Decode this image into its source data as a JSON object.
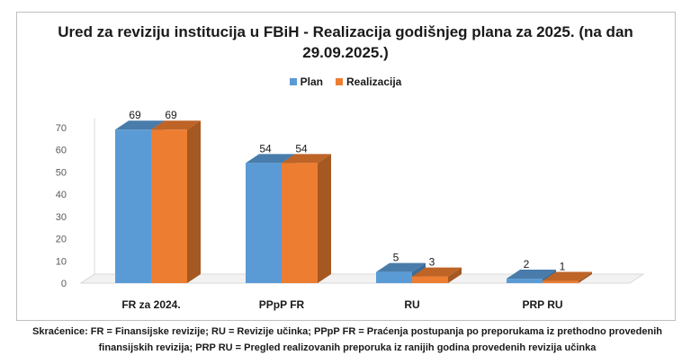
{
  "chart_data": {
    "type": "bar",
    "title": "Ured za reviziju institucija u FBiH - Realizacija godišnjeg plana za 2025. (na dan 29.09.2025.)",
    "categories": [
      "FR za 2024.",
      "PPpP FR",
      "RU",
      "PRP RU"
    ],
    "series": [
      {
        "name": "Plan",
        "values": [
          69,
          54,
          5,
          2
        ],
        "color": "#5b9bd5"
      },
      {
        "name": "Realizacija",
        "values": [
          69,
          54,
          3,
          1
        ],
        "color": "#ed7d31"
      }
    ],
    "ylim": [
      0,
      70
    ],
    "yticks": [
      0,
      10,
      20,
      30,
      40,
      50,
      60,
      70
    ],
    "grid": false,
    "legend_position": "top",
    "style": "3d-clustered-column"
  },
  "footnote": "Skraćenice: FR = Finansijske revizije; RU = Revizije učinka; PPpP FR = Praćenja postupanja po preporukama iz prethodno provedenih finansijskih revizija; PRP RU = Pregled realizovanih preporuka iz ranijih godina provedenih revizija učinka"
}
